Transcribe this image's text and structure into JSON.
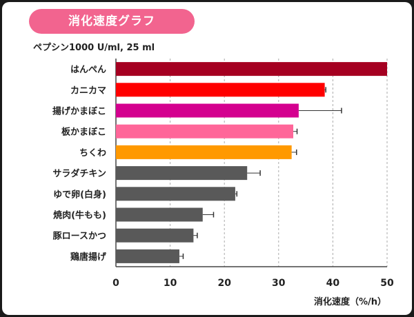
{
  "chart_data": {
    "type": "bar",
    "orientation": "horizontal",
    "title": "消化速度グラフ",
    "subtitle": "ペプシン1000 U/ml, 25 ml",
    "xlabel": "消化速度（%/h）",
    "ylabel": "",
    "xlim": [
      0,
      50
    ],
    "xticks": [
      "0",
      "10",
      "20",
      "30",
      "40",
      "50"
    ],
    "grid": "vertical dashed",
    "categories": [
      "はんぺん",
      "カニカマ",
      "揚げかまぼこ",
      "板かまぼこ",
      "ちくわ",
      "サラダチキン",
      "ゆで卵(白身)",
      "焼肉(牛もも)",
      "豚ロースかつ",
      "鶏唐揚げ"
    ],
    "values": [
      50,
      38.5,
      33.7,
      32.7,
      32.4,
      24.2,
      22.0,
      16.0,
      14.3,
      11.7
    ],
    "errors": [
      0,
      0.2,
      7.9,
      0.7,
      0.9,
      2.4,
      0.3,
      2.0,
      0.7,
      0.7
    ],
    "colors": [
      "#a50021",
      "#ff0000",
      "#d4008f",
      "#ff6699",
      "#ff9900",
      "#595959",
      "#595959",
      "#595959",
      "#595959",
      "#595959"
    ]
  },
  "title_pill_color": "#f2648f"
}
